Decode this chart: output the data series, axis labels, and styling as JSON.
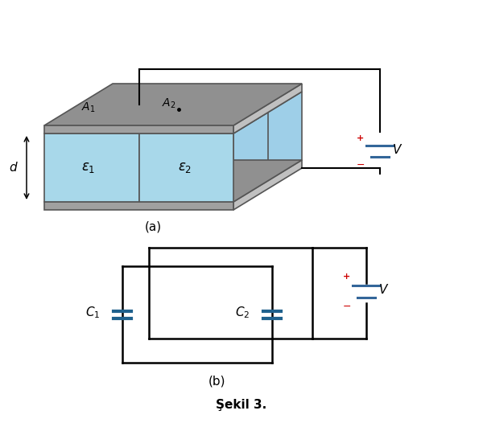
{
  "fig_width": 6.0,
  "fig_height": 5.26,
  "dpi": 100,
  "bg_color": "#ffffff",
  "label_a": "(a)",
  "label_b": "(b)",
  "title": "Şekil 3.",
  "plate_gray": "#a0a0a0",
  "plate_gray_top": "#909090",
  "plate_side": "#c0c0c0",
  "dielectric_color": "#a8d8ea",
  "dielectric_side": "#9ecfe8",
  "wire_color": "#000000",
  "cap_color": "#1f618d",
  "plus_color": "#cc0000",
  "minus_color": "#cc0000",
  "edge_color": "#555555"
}
